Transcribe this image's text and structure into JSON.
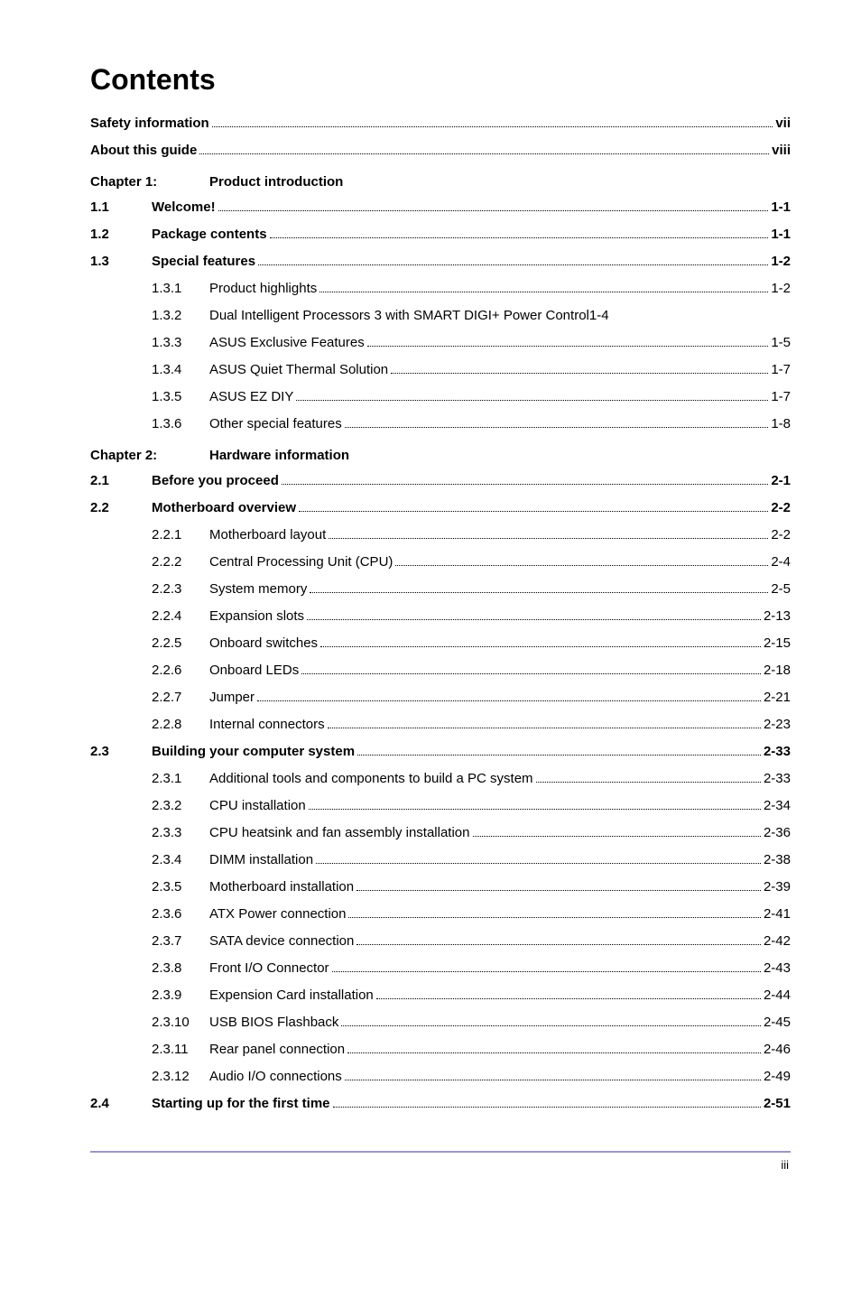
{
  "title": "Contents",
  "front": [
    {
      "label": "Safety information",
      "page": "vii",
      "bold": true
    },
    {
      "label": "About this guide",
      "page": "viii",
      "bold": true
    }
  ],
  "chapters": [
    {
      "heading_label": "Chapter 1:",
      "heading_title": "Product introduction",
      "rows": [
        {
          "sec": "1.1",
          "label": "Welcome!",
          "page": "1-1",
          "bold": true
        },
        {
          "sec": "1.2",
          "label": "Package contents",
          "page": "1-1",
          "bold": true
        },
        {
          "sec": "1.3",
          "label": "Special features",
          "page": "1-2",
          "bold": true
        },
        {
          "sub": "1.3.1",
          "label": "Product highlights",
          "page": "1-2"
        },
        {
          "sub": "1.3.2",
          "label": "Dual Intelligent Processors 3 with SMART DIGI+ Power Control",
          "page": "1-4",
          "nodots": true
        },
        {
          "sub": "1.3.3",
          "label": "ASUS Exclusive Features",
          "page": "1-5"
        },
        {
          "sub": "1.3.4",
          "label": "ASUS Quiet Thermal Solution",
          "page": "1-7"
        },
        {
          "sub": "1.3.5",
          "label": "ASUS EZ DIY",
          "page": "1-7"
        },
        {
          "sub": "1.3.6",
          "label": "Other special features",
          "page": "1-8"
        }
      ]
    },
    {
      "heading_label": "Chapter 2:",
      "heading_title": "Hardware information",
      "rows": [
        {
          "sec": "2.1",
          "label": "Before you proceed",
          "page": "2-1",
          "bold": true
        },
        {
          "sec": "2.2",
          "label": "Motherboard overview",
          "page": "2-2",
          "bold": true
        },
        {
          "sub": "2.2.1",
          "label": "Motherboard layout",
          "page": "2-2"
        },
        {
          "sub": "2.2.2",
          "label": "Central Processing Unit (CPU)",
          "page": "2-4"
        },
        {
          "sub": "2.2.3",
          "label": "System memory",
          "page": "2-5"
        },
        {
          "sub": "2.2.4",
          "label": "Expansion slots",
          "page": "2-13"
        },
        {
          "sub": "2.2.5",
          "label": "Onboard switches",
          "page": "2-15"
        },
        {
          "sub": "2.2.6",
          "label": "Onboard LEDs",
          "page": "2-18"
        },
        {
          "sub": "2.2.7",
          "label": "Jumper",
          "page": "2-21"
        },
        {
          "sub": "2.2.8",
          "label": "Internal connectors",
          "page": "2-23"
        },
        {
          "sec": "2.3",
          "label": "Building your computer system",
          "page": "2-33",
          "bold": true
        },
        {
          "sub": "2.3.1",
          "label": "Additional tools and components to build a PC system",
          "page": "2-33"
        },
        {
          "sub": "2.3.2",
          "label": "CPU installation",
          "page": "2-34"
        },
        {
          "sub": "2.3.3",
          "label": "CPU heatsink and fan assembly installation",
          "page": "2-36"
        },
        {
          "sub": "2.3.4",
          "label": "DIMM installation",
          "page": "2-38"
        },
        {
          "sub": "2.3.5",
          "label": "Motherboard installation",
          "page": "2-39"
        },
        {
          "sub": "2.3.6",
          "label": "ATX Power connection",
          "page": "2-41"
        },
        {
          "sub": "2.3.7",
          "label": "SATA device connection",
          "page": "2-42"
        },
        {
          "sub": "2.3.8",
          "label": "Front I/O Connector",
          "page": "2-43"
        },
        {
          "sub": "2.3.9",
          "label": "Expension Card installation",
          "page": "2-44"
        },
        {
          "sub": "2.3.10",
          "label": "USB BIOS Flashback",
          "page": "2-45"
        },
        {
          "sub": "2.3.11",
          "label": "Rear panel connection",
          "page": "2-46"
        },
        {
          "sub": "2.3.12",
          "label": "Audio I/O connections",
          "page": "2-49"
        },
        {
          "sec": "2.4",
          "label": "Starting up for the first time",
          "page": "2-51",
          "bold": true
        }
      ]
    }
  ],
  "footer_page": "iii",
  "colors": {
    "accent": "#a195c2"
  }
}
